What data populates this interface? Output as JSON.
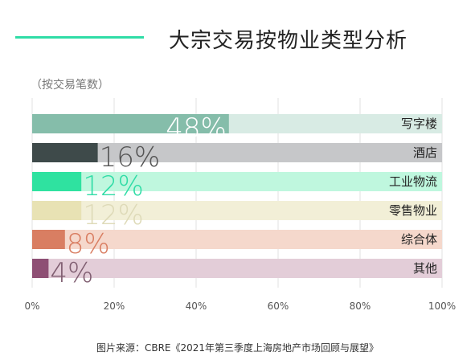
{
  "title": "大宗交易按物业类型分析",
  "unit_note": "（按交易笔数）",
  "source": "图片来源：CBRE《2021年第三季度上海房地产市场回顾与展望》",
  "colors": {
    "accent": "#2fdca6"
  },
  "chart_data": {
    "type": "bar",
    "orientation": "horizontal",
    "categories": [
      "写字楼",
      "酒店",
      "工业物流",
      "零售物业",
      "综合体",
      "其他"
    ],
    "values": [
      48,
      16,
      12,
      12,
      8,
      4
    ],
    "value_labels": [
      "48%",
      "16%",
      "12%",
      "12%",
      "8%",
      "4%"
    ],
    "colors": [
      "#85bdaa",
      "#3e4a4a",
      "#2fe2a0",
      "#e8e2b4",
      "#d97e62",
      "#8e4f74"
    ],
    "track_colors": [
      "#d8ebe4",
      "#c6c7c9",
      "#bff7de",
      "#f2efd7",
      "#f5d8cc",
      "#e3cdd8"
    ],
    "label_colors": [
      "#ffffff",
      "#555555",
      "#2fdca6",
      "#dedab8",
      "#d97e62",
      "#7f5d70"
    ],
    "xlim": [
      0,
      100
    ],
    "xticks": [
      "0%",
      "20%",
      "40%",
      "60%",
      "80%",
      "100%"
    ],
    "xlabel": "",
    "ylabel": "",
    "grid": true
  }
}
